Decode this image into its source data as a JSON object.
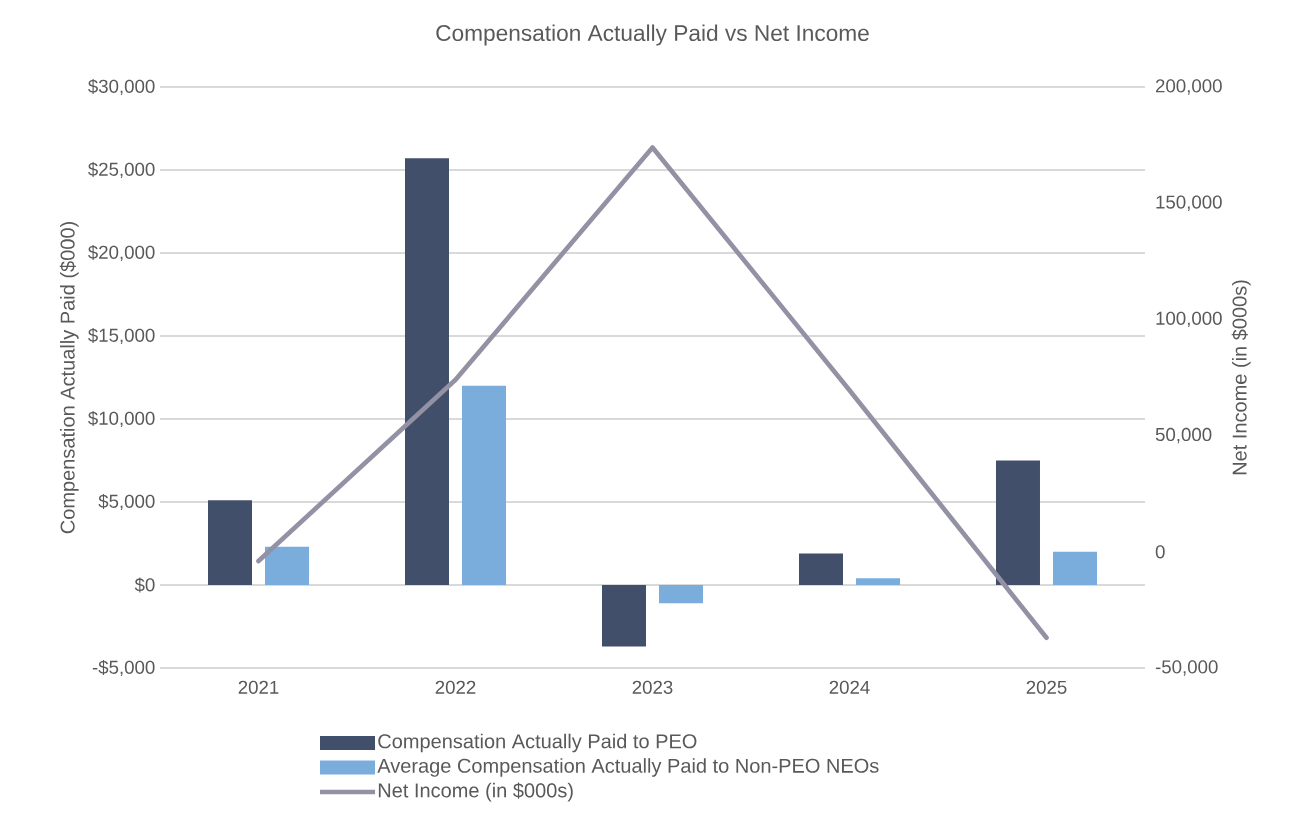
{
  "chart_data": {
    "type": "bar",
    "title": "Compensation Actually Paid vs Net Income",
    "categories": [
      "2021",
      "2022",
      "2023",
      "2024",
      "2025"
    ],
    "series": [
      {
        "name": "Compensation Actually Paid to PEO",
        "color": "#424f6a",
        "values": [
          5100,
          25700,
          -3700,
          1900,
          7500
        ]
      },
      {
        "name": "Average Compensation Actually Paid to Non-PEO NEOs",
        "color": "#7aaddc",
        "values": [
          2300,
          12000,
          -1100,
          400,
          2000
        ]
      },
      {
        "name": "Net Income (in $000s)",
        "type": "line",
        "axis": "y2",
        "color": "#9392a4",
        "values": [
          -4000,
          74000,
          174000,
          69500,
          -37000
        ]
      }
    ],
    "ylabel": "Compensation Actually Paid ($000)",
    "y2label": "Net Income (in $000s)",
    "ylim": [
      -5000,
      30000
    ],
    "yticks": [
      {
        "value": -5000,
        "label": "-$5,000"
      },
      {
        "value": 0,
        "label": "$0"
      },
      {
        "value": 5000,
        "label": "$5,000"
      },
      {
        "value": 10000,
        "label": "$10,000"
      },
      {
        "value": 15000,
        "label": "$15,000"
      },
      {
        "value": 20000,
        "label": "$20,000"
      },
      {
        "value": 25000,
        "label": "$25,000"
      },
      {
        "value": 30000,
        "label": "$30,000"
      }
    ],
    "y2lim": [
      -50000,
      200000
    ],
    "y2ticks": [
      {
        "value": -50000,
        "label": "-50,000"
      },
      {
        "value": 0,
        "label": "0"
      },
      {
        "value": 50000,
        "label": "50,000"
      },
      {
        "value": 100000,
        "label": "100,000"
      },
      {
        "value": 150000,
        "label": "150,000"
      },
      {
        "value": 200000,
        "label": "200,000"
      }
    ],
    "grid": "y",
    "legend": "bottom"
  }
}
